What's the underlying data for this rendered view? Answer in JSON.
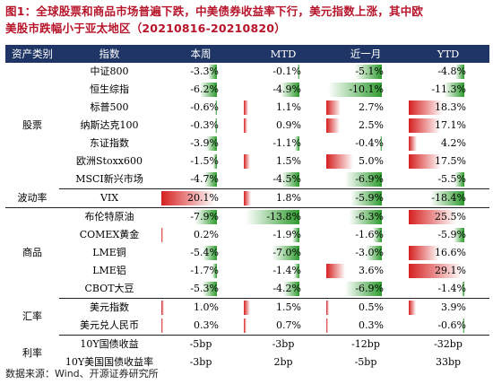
{
  "title": {
    "line1": "图1：全球股票和商品市场普遍下跌，中美债券收益率下行，美元指数上涨，其中欧",
    "line2": "美股市跌幅小于亚太地区（20210816-20210820）"
  },
  "headers": [
    "资产类别",
    "指数",
    "本周",
    "MTD",
    "近一月",
    "YTD"
  ],
  "groups": [
    {
      "category": "股票",
      "rows": [
        {
          "name": "中证800",
          "values": [
            "-3.3%",
            "-0.1%",
            "-5.1%",
            "-4.8%"
          ],
          "nums": [
            -3.3,
            -0.1,
            -5.1,
            -4.8
          ]
        },
        {
          "name": "恒生综指",
          "values": [
            "-6.2%",
            "-4.9%",
            "-10.1%",
            "-11.3%"
          ],
          "nums": [
            -6.2,
            -4.9,
            -10.1,
            -11.3
          ]
        },
        {
          "name": "标普500",
          "values": [
            "-0.6%",
            "1.1%",
            "2.7%",
            "18.3%"
          ],
          "nums": [
            -0.6,
            1.1,
            2.7,
            18.3
          ]
        },
        {
          "name": "纳斯达克100",
          "values": [
            "-0.3%",
            "0.9%",
            "2.5%",
            "17.1%"
          ],
          "nums": [
            -0.3,
            0.9,
            2.5,
            17.1
          ]
        },
        {
          "name": "东证指数",
          "values": [
            "-3.9%",
            "-1.1%",
            "-0.4%",
            "4.2%"
          ],
          "nums": [
            -3.9,
            -1.1,
            -0.4,
            4.2
          ]
        },
        {
          "name": "欧洲Stoxx600",
          "values": [
            "-1.5%",
            "1.5%",
            "5.0%",
            "17.5%"
          ],
          "nums": [
            -1.5,
            1.5,
            5.0,
            17.5
          ]
        },
        {
          "name": "MSCI新兴市场",
          "values": [
            "-4.7%",
            "-4.5%",
            "-6.9%",
            "-5.5%"
          ],
          "nums": [
            -4.7,
            -4.5,
            -6.9,
            -5.5
          ]
        }
      ]
    },
    {
      "category": "波动率",
      "rows": [
        {
          "name": "VIX",
          "values": [
            "20.1%",
            "1.8%",
            "-5.9%",
            "-18.4%"
          ],
          "nums": [
            20.1,
            1.8,
            -5.9,
            -18.4
          ]
        }
      ]
    },
    {
      "category": "商品",
      "rows": [
        {
          "name": "布伦特原油",
          "values": [
            "-7.9%",
            "-13.8%",
            "-6.3%",
            "25.5%"
          ],
          "nums": [
            -7.9,
            -13.8,
            -6.3,
            25.5
          ]
        },
        {
          "name": "COMEX黄金",
          "values": [
            "0.2%",
            "-1.9%",
            "-1.6%",
            "-5.9%"
          ],
          "nums": [
            0.2,
            -1.9,
            -1.6,
            -5.9
          ]
        },
        {
          "name": "LME铜",
          "values": [
            "-5.4%",
            "-7.0%",
            "-3.0%",
            "16.6%"
          ],
          "nums": [
            -5.4,
            -7.0,
            -3.0,
            16.6
          ]
        },
        {
          "name": "LME铝",
          "values": [
            "-1.7%",
            "-1.4%",
            "3.6%",
            "29.1%"
          ],
          "nums": [
            -1.7,
            -1.4,
            3.6,
            29.1
          ]
        },
        {
          "name": "CBOT大豆",
          "values": [
            "-5.3%",
            "-4.2%",
            "-6.9%",
            "-1.4%"
          ],
          "nums": [
            -5.3,
            -4.2,
            -6.9,
            -1.4
          ]
        }
      ]
    },
    {
      "category": "汇率",
      "rows": [
        {
          "name": "美元指数",
          "values": [
            "1.0%",
            "1.5%",
            "0.5%",
            "3.9%"
          ],
          "nums": [
            1.0,
            1.5,
            0.5,
            3.9
          ]
        },
        {
          "name": "美元兑人民币",
          "values": [
            "0.3%",
            "0.7%",
            "0.3%",
            "-0.6%"
          ],
          "nums": [
            0.3,
            0.7,
            0.3,
            -0.6
          ]
        }
      ]
    },
    {
      "category": "利率",
      "rows": [
        {
          "name": "10Y国债收益",
          "values": [
            "-5bp",
            "-3bp",
            "-12bp",
            "-32bp"
          ]
        },
        {
          "name": "10Y美国国债收益率",
          "values": [
            "-3bp",
            "2bp",
            "-5bp",
            "33bp"
          ]
        }
      ]
    }
  ],
  "colors": {
    "negative": "#2e9b2e",
    "positive": "#d62020",
    "header": "#1e3565",
    "title": "#b7142a"
  },
  "source": "数据来源：Wind、开源证券研究所"
}
